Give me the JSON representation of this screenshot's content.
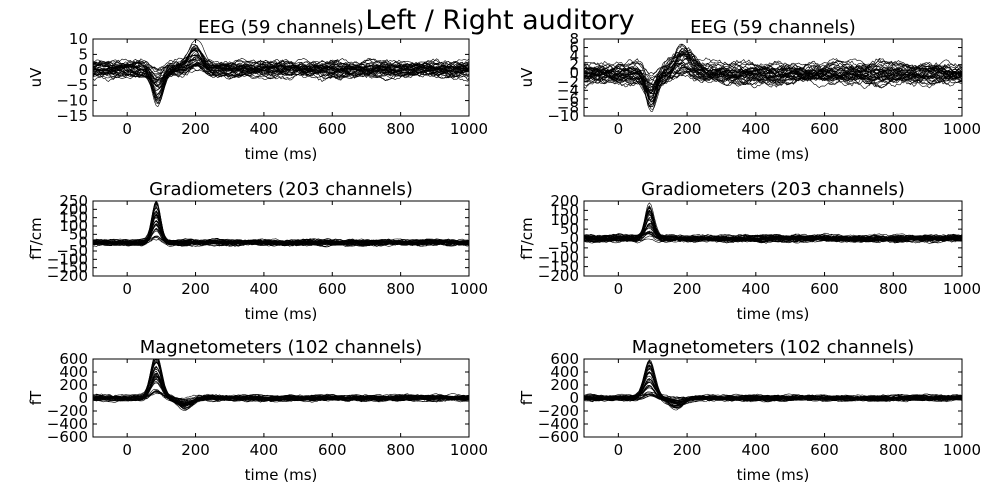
{
  "figure": {
    "title": "Left / Right auditory"
  },
  "chart_data": [
    {
      "type": "line",
      "title": "EEG (59 channels)",
      "xlabel": "time (ms)",
      "ylabel": "uV",
      "xlim": [
        -100,
        1000
      ],
      "ylim": [
        -15,
        10
      ],
      "xticks": [
        0,
        200,
        400,
        600,
        800,
        1000
      ],
      "yticks": [
        -15,
        -10,
        -5,
        0,
        5,
        10
      ],
      "series_count": 59,
      "grid": false,
      "color": "#000000",
      "peaks": [
        {
          "t": 90,
          "a": -8,
          "w": 22
        },
        {
          "t": 200,
          "a": 6,
          "w": 30
        }
      ],
      "noise": 2.2,
      "spread": 1.6
    },
    {
      "type": "line",
      "title": "EEG (59 channels)",
      "xlabel": "time (ms)",
      "ylabel": "uV",
      "xlim": [
        -100,
        1000
      ],
      "ylim": [
        -10,
        8
      ],
      "xticks": [
        0,
        200,
        400,
        600,
        800,
        1000
      ],
      "yticks": [
        -10,
        -8,
        -6,
        -4,
        -2,
        0,
        2,
        4,
        6,
        8
      ],
      "series_count": 59,
      "grid": false,
      "color": "#000000",
      "peaks": [
        {
          "t": 95,
          "a": -6,
          "w": 22
        },
        {
          "t": 190,
          "a": 4,
          "w": 35
        }
      ],
      "noise": 2.0,
      "spread": 1.5
    },
    {
      "type": "line",
      "title": "Gradiometers (203 channels)",
      "xlabel": "time (ms)",
      "ylabel": "fT/cm",
      "xlim": [
        -100,
        1000
      ],
      "ylim": [
        -200,
        250
      ],
      "xticks": [
        0,
        200,
        400,
        600,
        800,
        1000
      ],
      "yticks": [
        -200,
        -150,
        -100,
        -50,
        0,
        50,
        100,
        150,
        200,
        250
      ],
      "series_count": 203,
      "grid": false,
      "color": "#000000",
      "peaks": [
        {
          "t": 85,
          "a": 180,
          "w": 18
        }
      ],
      "noise": 18,
      "spread": 8
    },
    {
      "type": "line",
      "title": "Gradiometers (203 channels)",
      "xlabel": "time (ms)",
      "ylabel": "fT/cm",
      "xlim": [
        -100,
        1000
      ],
      "ylim": [
        -200,
        200
      ],
      "xticks": [
        0,
        200,
        400,
        600,
        800,
        1000
      ],
      "yticks": [
        -200,
        -150,
        -100,
        -50,
        0,
        50,
        100,
        150,
        200
      ],
      "series_count": 203,
      "grid": false,
      "color": "#000000",
      "peaks": [
        {
          "t": 90,
          "a": 140,
          "w": 18
        }
      ],
      "noise": 18,
      "spread": 8
    },
    {
      "type": "line",
      "title": "Magnetometers (102 channels)",
      "xlabel": "time (ms)",
      "ylabel": "fT",
      "xlim": [
        -100,
        1000
      ],
      "ylim": [
        -600,
        600
      ],
      "xticks": [
        0,
        200,
        400,
        600,
        800,
        1000
      ],
      "yticks": [
        -600,
        -400,
        -200,
        0,
        200,
        400,
        600
      ],
      "series_count": 102,
      "grid": false,
      "color": "#000000",
      "peaks": [
        {
          "t": 85,
          "a": 480,
          "w": 22
        },
        {
          "t": 170,
          "a": -120,
          "w": 30
        }
      ],
      "noise": 40,
      "spread": 25
    },
    {
      "type": "line",
      "title": "Magnetometers (102 channels)",
      "xlabel": "time (ms)",
      "ylabel": "fT",
      "xlim": [
        -100,
        1000
      ],
      "ylim": [
        -600,
        600
      ],
      "xticks": [
        0,
        200,
        400,
        600,
        800,
        1000
      ],
      "yticks": [
        -600,
        -400,
        -200,
        0,
        200,
        400,
        600
      ],
      "series_count": 102,
      "grid": false,
      "color": "#000000",
      "peaks": [
        {
          "t": 90,
          "a": 430,
          "w": 22
        },
        {
          "t": 170,
          "a": -110,
          "w": 30
        }
      ],
      "noise": 40,
      "spread": 25
    }
  ]
}
